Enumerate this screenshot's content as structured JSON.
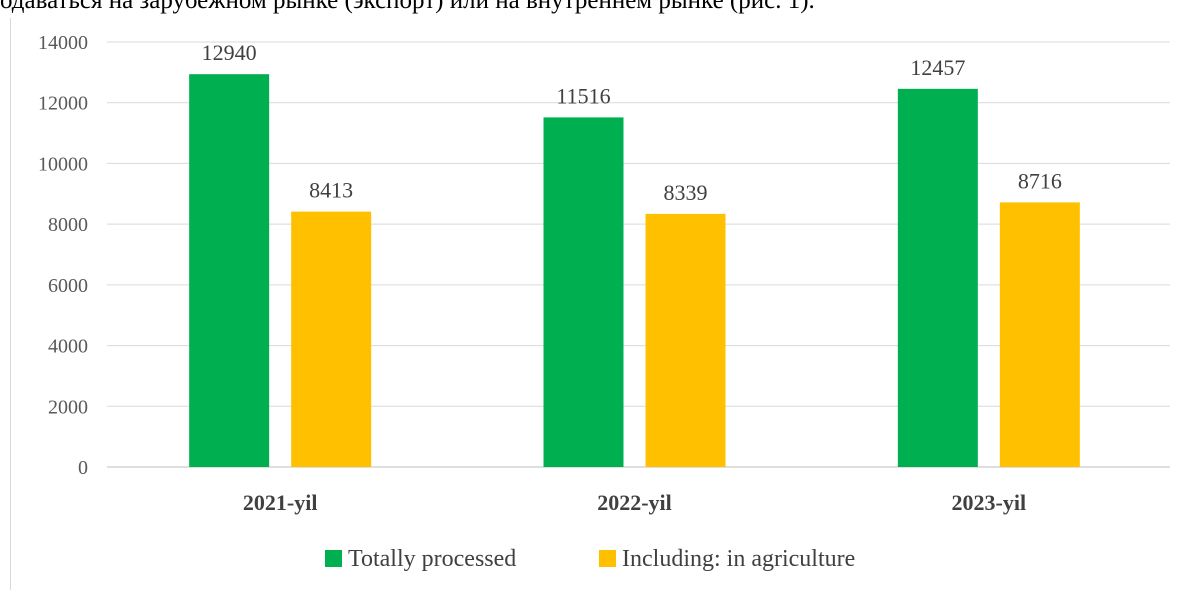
{
  "page": {
    "clipped_text": "одаваться на зарубежном рынке (экспорт) или на внутреннем рынке (рис. 1)."
  },
  "chart_data": {
    "type": "bar",
    "categories": [
      "2021-yil",
      "2022-yil",
      "2023-yil"
    ],
    "series": [
      {
        "name": "Totally processed",
        "values": [
          12940,
          11516,
          12457
        ],
        "color": "#00b050"
      },
      {
        "name": "Including: in agriculture",
        "values": [
          8413,
          8339,
          8716
        ],
        "color": "#ffc000"
      }
    ],
    "ylim": [
      0,
      14000
    ],
    "yticks": [
      0,
      2000,
      4000,
      6000,
      8000,
      10000,
      12000,
      14000
    ],
    "grid": true,
    "legend": "bottom",
    "title": "",
    "xlabel": "",
    "ylabel": ""
  }
}
